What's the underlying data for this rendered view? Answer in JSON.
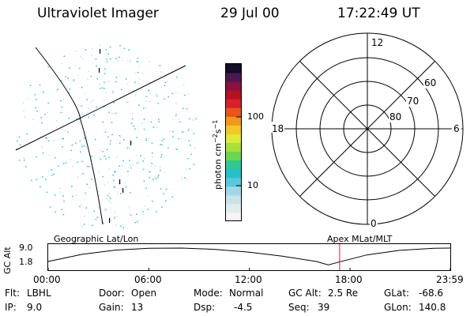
{
  "header": {
    "instrument": "Ultraviolet Imager",
    "date": "29 Jul 00",
    "time": "17:22:49 UT"
  },
  "colorbar": {
    "unit_label": "photon cm",
    "unit_sup1": "−2",
    "unit_mid": "s",
    "unit_sup2": "−1",
    "ticks": [
      "100",
      "10"
    ],
    "colors": [
      "#f5f5f5",
      "#e2ecec",
      "#c8e4e8",
      "#9fd8e6",
      "#59c8dc",
      "#22c2cc",
      "#2ec892",
      "#6ad650",
      "#a6e23a",
      "#dcea38",
      "#f2c826",
      "#f2961c",
      "#e8561c",
      "#d8202a",
      "#b81020",
      "#8c1040",
      "#4c1850",
      "#140c28"
    ]
  },
  "polar_plot": {
    "labels": {
      "top": "12",
      "bottom": "0",
      "left": "18",
      "right": "6"
    },
    "latitudes": [
      "60",
      "70",
      "80"
    ]
  },
  "timeline": {
    "ylabel": "GC Alt",
    "yticks": [
      "9.0",
      "1.8"
    ],
    "left_caption": "Geographic Lat/Lon",
    "right_caption": "Apex MLat/MLT",
    "xticks": [
      "00:00",
      "06:00",
      "12:00",
      "18:00",
      "23:59"
    ],
    "marker_time_hours": 17.38,
    "altitude_profile": [
      {
        "t": 0.0,
        "alt": 1.8
      },
      {
        "t": 2.0,
        "alt": 5.6
      },
      {
        "t": 4.0,
        "alt": 7.9
      },
      {
        "t": 6.0,
        "alt": 8.9
      },
      {
        "t": 8.0,
        "alt": 9.0
      },
      {
        "t": 10.0,
        "alt": 8.3
      },
      {
        "t": 12.0,
        "alt": 6.8
      },
      {
        "t": 14.0,
        "alt": 4.6
      },
      {
        "t": 16.0,
        "alt": 1.8
      },
      {
        "t": 16.7,
        "alt": 0.0
      },
      {
        "t": 17.5,
        "alt": 1.9
      },
      {
        "t": 19.0,
        "alt": 5.3
      },
      {
        "t": 21.0,
        "alt": 7.8
      },
      {
        "t": 23.0,
        "alt": 8.9
      },
      {
        "t": 23.98,
        "alt": 9.0
      }
    ]
  },
  "status": {
    "flt_label": "Flt:",
    "flt_value": "LBHL",
    "ip_label": "IP:",
    "ip_value": "9.0",
    "door_label": "Door:",
    "door_value": "Open",
    "gain_label": "Gain:",
    "gain_value": "13",
    "mode_label": "Mode:",
    "mode_value": "Normal",
    "dsp_label": "Dsp:",
    "dsp_value": "-4.5",
    "gcalt_label": "GC Alt:",
    "gcalt_value": "2.5 Re",
    "seq_label": "Seq:",
    "seq_value": "39",
    "glat_label": "GLat:",
    "glat_value": "-68.6",
    "glon_label": "GLon:",
    "glon_value": "140.8"
  },
  "colors": {
    "marker": "#c0282a",
    "speckle": "#3cc8d0"
  }
}
